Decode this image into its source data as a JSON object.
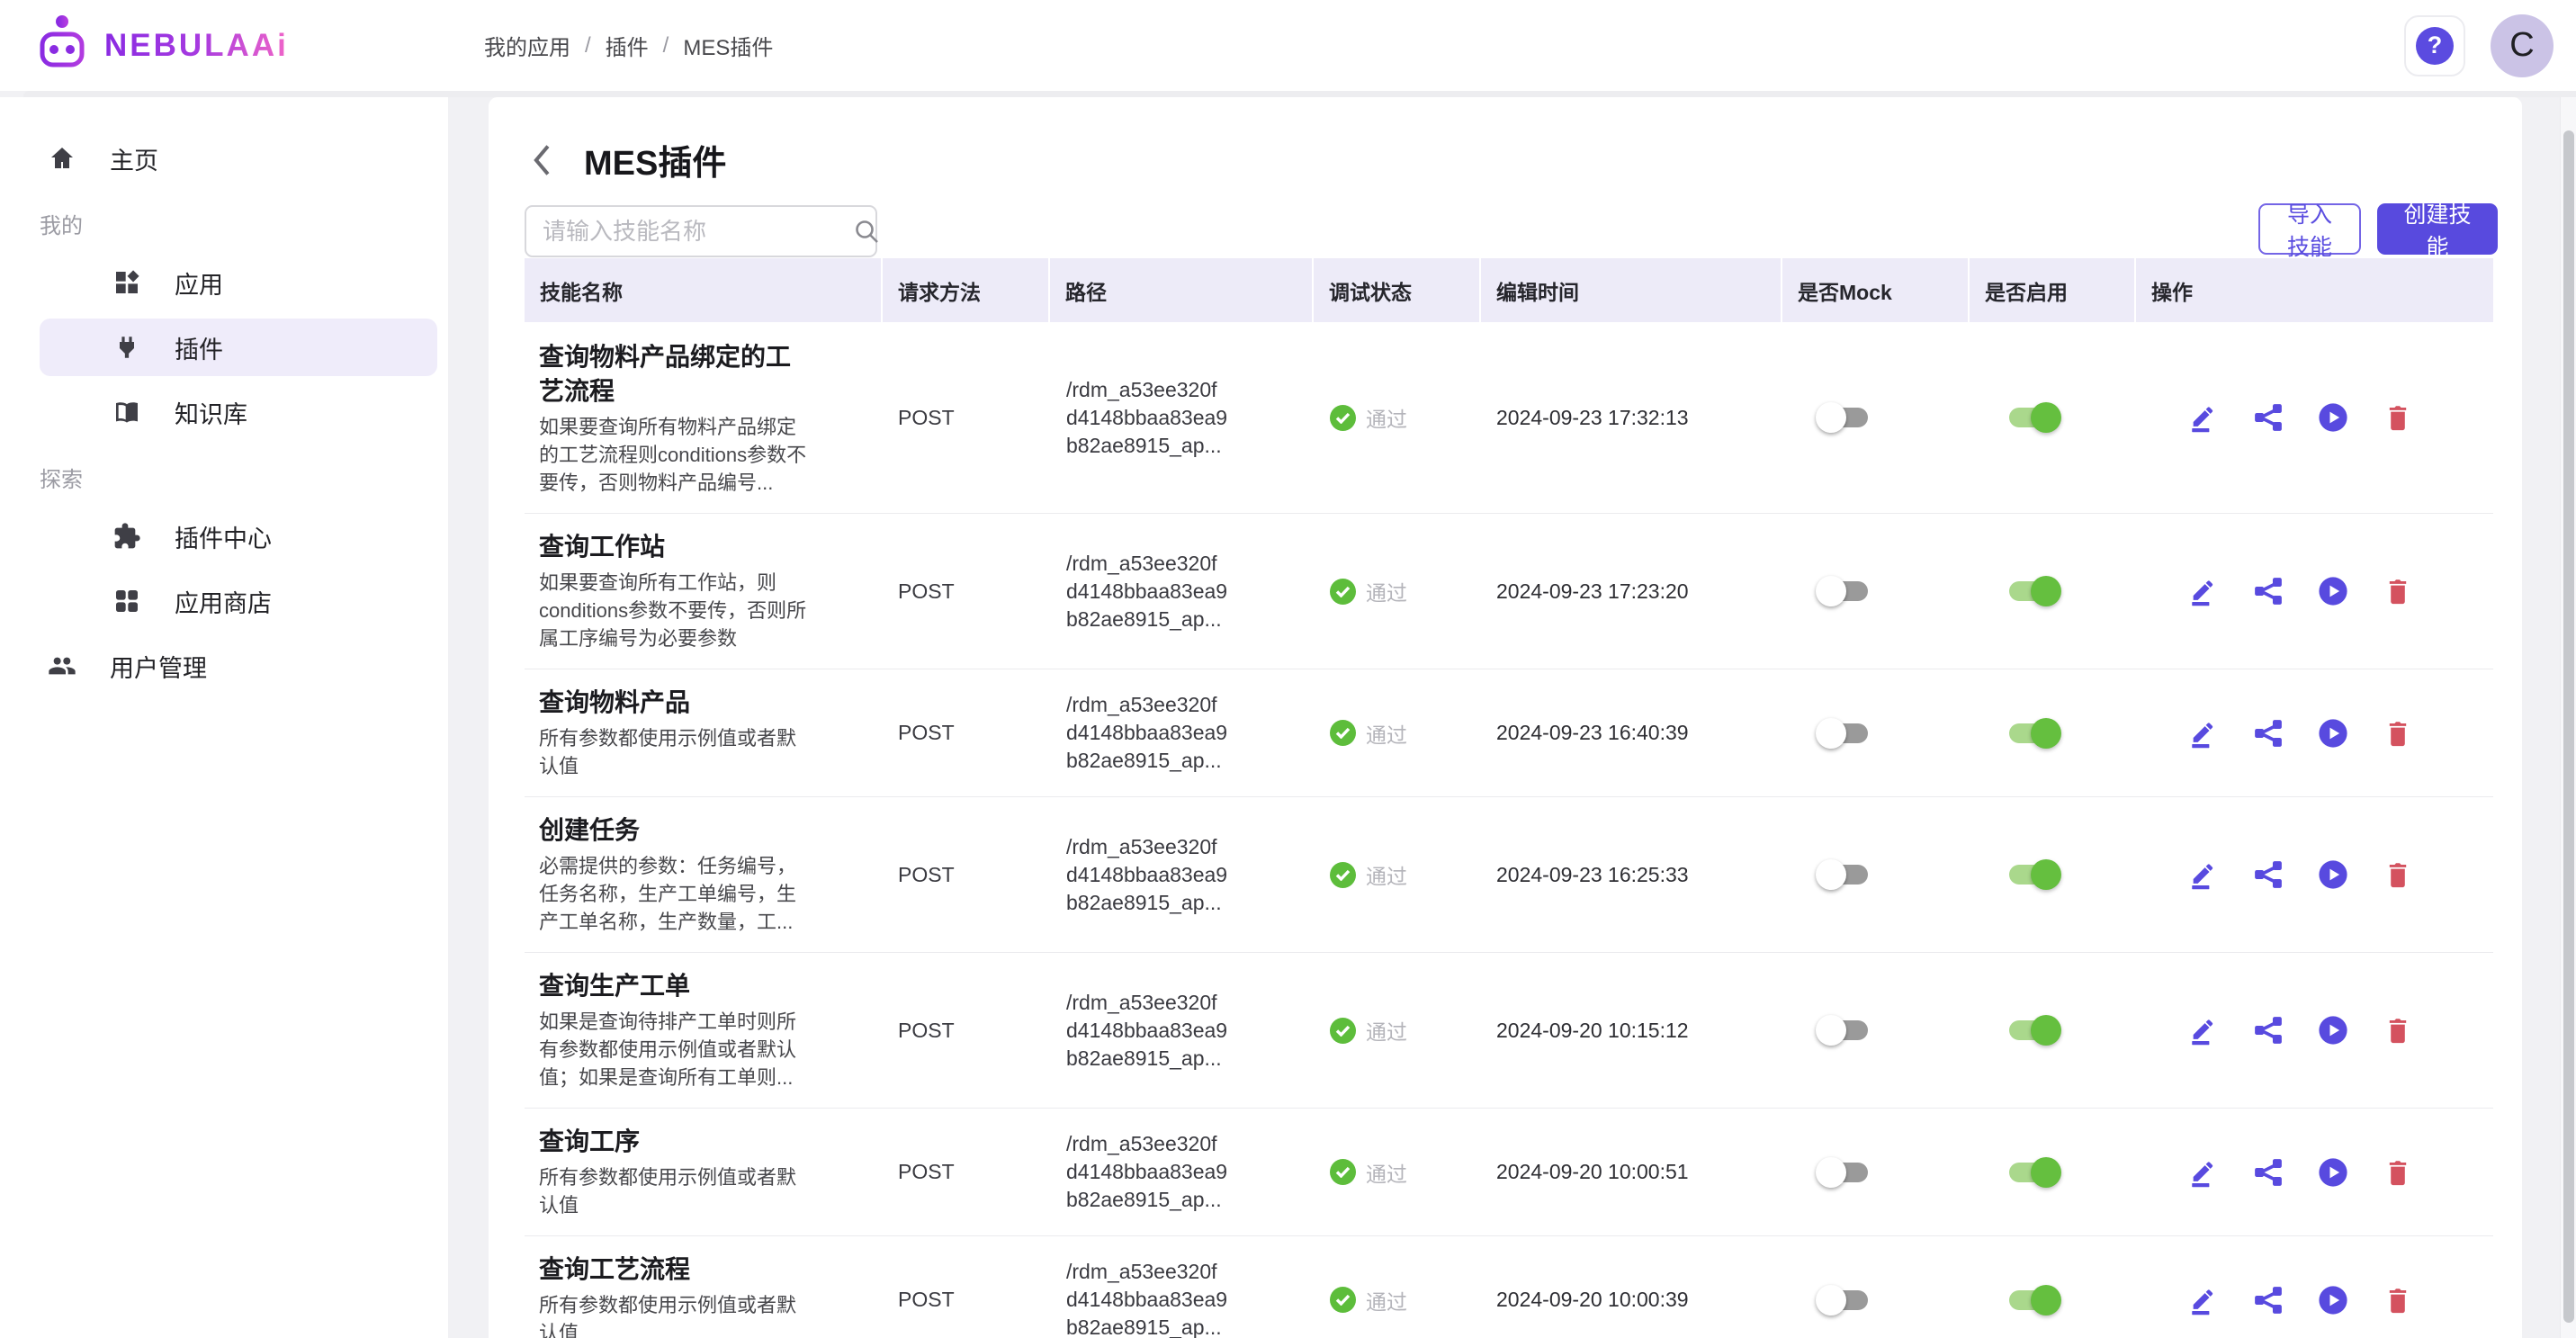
{
  "header": {
    "logo_text": "NEBULAAi",
    "breadcrumb": [
      "我的应用",
      "插件",
      "MES插件"
    ],
    "help_label": "?",
    "avatar_letter": "C"
  },
  "sidebar": {
    "items": [
      {
        "type": "link",
        "icon": "home-icon",
        "label": "主页",
        "level": 0,
        "selected": false
      },
      {
        "type": "section",
        "label": "我的"
      },
      {
        "type": "link",
        "icon": "apps-diamond-icon",
        "label": "应用",
        "level": 1,
        "selected": false
      },
      {
        "type": "link",
        "icon": "plug-icon",
        "label": "插件",
        "level": 1,
        "selected": true
      },
      {
        "type": "link",
        "icon": "book-icon",
        "label": "知识库",
        "level": 1,
        "selected": false
      },
      {
        "type": "section",
        "label": "探索"
      },
      {
        "type": "link",
        "icon": "puzzle-icon",
        "label": "插件中心",
        "level": 1,
        "selected": false
      },
      {
        "type": "link",
        "icon": "grid-icon",
        "label": "应用商店",
        "level": 1,
        "selected": false
      },
      {
        "type": "link",
        "icon": "users-icon",
        "label": "用户管理",
        "level": 0,
        "selected": false
      }
    ]
  },
  "page": {
    "title": "MES插件",
    "search_placeholder": "请输入技能名称",
    "import_button": "导入技能",
    "create_button": "创建技能"
  },
  "table": {
    "columns": [
      "技能名称",
      "请求方法",
      "路径",
      "调试状态",
      "编辑时间",
      "是否Mock",
      "是否启用",
      "操作"
    ],
    "rows": [
      {
        "name": "查询物料产品绑定的工艺流程",
        "desc": "如果要查询所有物料产品绑定的工艺流程则conditions参数不要传，否则物料产品编号...",
        "method": "POST",
        "path": "/rdm_a53ee320f\nd4148bbaa83ea9\nb82ae8915_ap...",
        "status": "通过",
        "time": "2024-09-23 17:32:13",
        "mock": false,
        "enabled": true
      },
      {
        "name": "查询工作站",
        "desc": "如果要查询所有工作站，则conditions参数不要传，否则所属工序编号为必要参数",
        "method": "POST",
        "path": "/rdm_a53ee320f\nd4148bbaa83ea9\nb82ae8915_ap...",
        "status": "通过",
        "time": "2024-09-23 17:23:20",
        "mock": false,
        "enabled": true
      },
      {
        "name": "查询物料产品",
        "desc": "所有参数都使用示例值或者默认值",
        "method": "POST",
        "path": "/rdm_a53ee320f\nd4148bbaa83ea9\nb82ae8915_ap...",
        "status": "通过",
        "time": "2024-09-23 16:40:39",
        "mock": false,
        "enabled": true
      },
      {
        "name": "创建任务",
        "desc": "必需提供的参数：任务编号，任务名称，生产工单编号，生产工单名称，生产数量，工...",
        "method": "POST",
        "path": "/rdm_a53ee320f\nd4148bbaa83ea9\nb82ae8915_ap...",
        "status": "通过",
        "time": "2024-09-23 16:25:33",
        "mock": false,
        "enabled": true
      },
      {
        "name": "查询生产工单",
        "desc": "如果是查询待排产工单时则所有参数都使用示例值或者默认值；如果是查询所有工单则...",
        "method": "POST",
        "path": "/rdm_a53ee320f\nd4148bbaa83ea9\nb82ae8915_ap...",
        "status": "通过",
        "time": "2024-09-20 10:15:12",
        "mock": false,
        "enabled": true
      },
      {
        "name": "查询工序",
        "desc": "所有参数都使用示例值或者默认值",
        "method": "POST",
        "path": "/rdm_a53ee320f\nd4148bbaa83ea9\nb82ae8915_ap...",
        "status": "通过",
        "time": "2024-09-20 10:00:51",
        "mock": false,
        "enabled": true
      },
      {
        "name": "查询工艺流程",
        "desc": "所有参数都使用示例值或者默认值",
        "method": "POST",
        "path": "/rdm_a53ee320f\nd4148bbaa83ea9\nb82ae8915_ap...",
        "status": "通过",
        "time": "2024-09-20 10:00:39",
        "mock": false,
        "enabled": true
      }
    ]
  },
  "colors": {
    "primary_purple": "#584ade",
    "header_lavender": "#edebf8",
    "selected_pill": "#efecfa",
    "toggle_green": "#65bf3f",
    "toggle_green_track": "#aad88c",
    "check_green": "#5dbd3b",
    "delete_red": "#d4525f",
    "status_gray": "#b4b4ba"
  }
}
